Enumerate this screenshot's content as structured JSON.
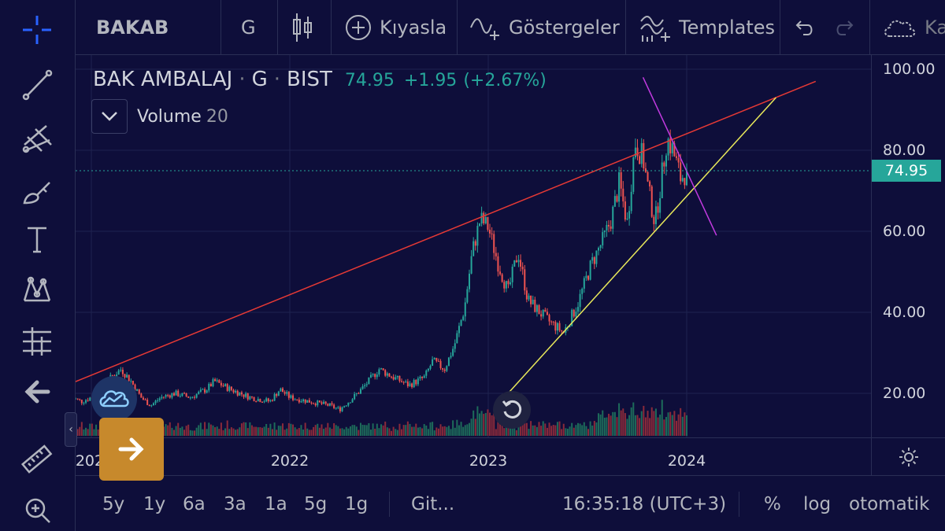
{
  "header": {
    "symbol": "BAKAB",
    "interval": "G",
    "compare_label": "Kıyasla",
    "indicators_label": "Göstergeler",
    "templates_label": "Templates",
    "truncated_label": "Ka"
  },
  "legend": {
    "name": "BAK AMBALAJ",
    "interval": "G",
    "exchange": "BIST",
    "last": "74.95",
    "change": "+1.95",
    "change_pct": "(+2.67%)",
    "volume_label": "Volume",
    "volume_length": "20"
  },
  "price_axis": {
    "labels": [
      "100.00",
      "80.00",
      "60.00",
      "40.00",
      "20.00"
    ],
    "last_price": "74.95"
  },
  "time_axis": {
    "labels": [
      "2021",
      "2022",
      "2023",
      "2024"
    ]
  },
  "bottom_bar": {
    "ranges": [
      "5y",
      "1y",
      "6a",
      "3a",
      "1a",
      "5g",
      "1g"
    ],
    "goto_label": "Git...",
    "clock": "16:35:18 (UTC+3)",
    "percent_label": "%",
    "log_label": "log",
    "auto_label": "otomatik"
  },
  "colors": {
    "background": "#0e0e3a",
    "up": "#26a69a",
    "down": "#ef5350",
    "accent_blue": "#2962ff",
    "trend_red": "#e53935",
    "trend_yellow": "#e8e85a",
    "trend_magenta": "#c23ae0",
    "last_price_tag": "#26a69a",
    "arrow_button": "#c7892c"
  },
  "icons": {
    "left_toolbar": [
      "crosshair-icon",
      "trend-line-icon",
      "pitchfork-icon",
      "brush-icon",
      "text-icon",
      "pattern-icon",
      "prediction-icon",
      "back-arrow-icon",
      "ruler-icon",
      "zoom-icon"
    ],
    "top_toolbar": [
      "candles-icon",
      "plus-circle-icon",
      "indicators-icon",
      "templates-icon",
      "undo-icon",
      "redo-icon",
      "cloud-icon"
    ]
  },
  "chart_data": {
    "type": "candlestick",
    "symbol": "BAK AMBALAJ",
    "interval": "G",
    "exchange": "BIST",
    "ylim": [
      0,
      100
    ],
    "yticks": [
      20,
      40,
      60,
      80,
      100
    ],
    "xticks": [
      "2021",
      "2022",
      "2023",
      "2024"
    ],
    "last_price": 74.95,
    "close_path": [
      [
        2020.9,
        19
      ],
      [
        2020.95,
        18
      ],
      [
        2021.0,
        19
      ],
      [
        2021.05,
        20
      ],
      [
        2021.1,
        24
      ],
      [
        2021.15,
        26
      ],
      [
        2021.2,
        23
      ],
      [
        2021.25,
        19
      ],
      [
        2021.3,
        17
      ],
      [
        2021.35,
        19
      ],
      [
        2021.42,
        20
      ],
      [
        2021.5,
        19
      ],
      [
        2021.58,
        21
      ],
      [
        2021.62,
        23
      ],
      [
        2021.7,
        21
      ],
      [
        2021.8,
        19
      ],
      [
        2021.9,
        18
      ],
      [
        2021.95,
        21
      ],
      [
        2022.0,
        19
      ],
      [
        2022.1,
        18
      ],
      [
        2022.2,
        17
      ],
      [
        2022.25,
        16
      ],
      [
        2022.32,
        19
      ],
      [
        2022.38,
        22
      ],
      [
        2022.45,
        26
      ],
      [
        2022.52,
        24
      ],
      [
        2022.6,
        22
      ],
      [
        2022.68,
        24
      ],
      [
        2022.72,
        28
      ],
      [
        2022.78,
        26
      ],
      [
        2022.83,
        32
      ],
      [
        2022.88,
        41
      ],
      [
        2022.92,
        55
      ],
      [
        2022.96,
        63
      ],
      [
        2023.0,
        61
      ],
      [
        2023.05,
        52
      ],
      [
        2023.1,
        45
      ],
      [
        2023.15,
        55
      ],
      [
        2023.2,
        43
      ],
      [
        2023.3,
        38
      ],
      [
        2023.38,
        35
      ],
      [
        2023.45,
        42
      ],
      [
        2023.52,
        52
      ],
      [
        2023.58,
        58
      ],
      [
        2023.62,
        63
      ],
      [
        2023.66,
        72
      ],
      [
        2023.7,
        62
      ],
      [
        2023.74,
        82
      ],
      [
        2023.78,
        78
      ],
      [
        2023.8,
        72
      ],
      [
        2023.84,
        62
      ],
      [
        2023.87,
        72
      ],
      [
        2023.9,
        83
      ],
      [
        2023.93,
        80
      ],
      [
        2023.97,
        73
      ],
      [
        2024.0,
        74.95
      ]
    ],
    "volume_note": "Volume 20 histogram at bottom, green/red bars",
    "drawings": [
      {
        "type": "trend_line",
        "color": "red",
        "from": [
          "2020.9",
          22.5
        ],
        "to": [
          "2024.65",
          97
        ]
      },
      {
        "type": "trend_line",
        "color": "yellow",
        "from": [
          "2023.1",
          20
        ],
        "to": [
          "2024.45",
          93
        ]
      },
      {
        "type": "trend_line",
        "color": "magenta",
        "from": [
          "2023.78",
          98
        ],
        "to": [
          "2024.15",
          59
        ]
      }
    ]
  }
}
